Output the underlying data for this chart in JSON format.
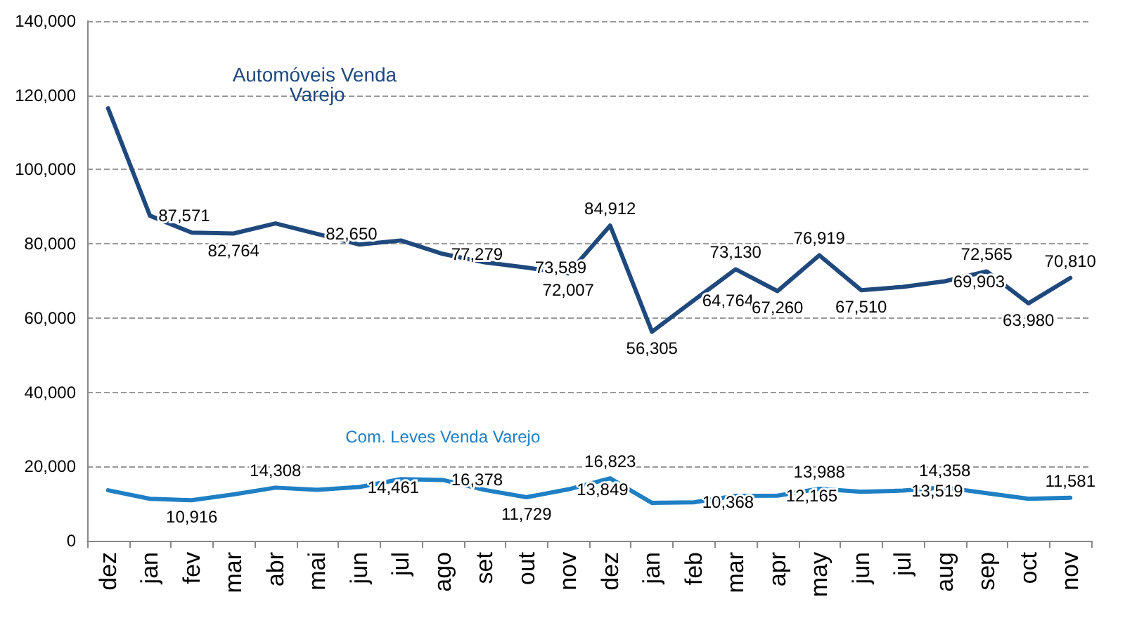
{
  "chart_data": {
    "type": "line",
    "categories": [
      "dez",
      "jan",
      "fev",
      "mar",
      "abr",
      "mai",
      "jun",
      "jul",
      "ago",
      "set",
      "out",
      "nov",
      "dez",
      "jan",
      "feb",
      "mar",
      "apr",
      "may",
      "jun",
      "jul",
      "aug",
      "sep",
      "oct",
      "nov"
    ],
    "series": [
      {
        "name": "Automóveis Venda Varejo",
        "color": "#1f497d",
        "values": [
          116500,
          87571,
          83000,
          82764,
          85500,
          82650,
          79800,
          80900,
          77279,
          75000,
          73589,
          72007,
          84912,
          56305,
          64764,
          73130,
          67260,
          76919,
          67510,
          68400,
          69903,
          72565,
          63980,
          70810
        ],
        "value_labels": [
          null,
          "87,571",
          null,
          "82,764",
          null,
          "82,650",
          null,
          null,
          "77,279",
          null,
          "73,589",
          "72,007",
          "84,912",
          "56,305",
          "64,764",
          "73,130",
          "67,260",
          "76,919",
          "67,510",
          null,
          "69,903",
          "72,565",
          "63,980",
          "70,810"
        ]
      },
      {
        "name": "Com. Leves Venda Varejo",
        "color": "#1f7fc4",
        "values": [
          13600,
          11300,
          10916,
          12500,
          14308,
          13700,
          14461,
          16600,
          16378,
          13700,
          11729,
          13849,
          16823,
          10200,
          10368,
          12100,
          12165,
          13988,
          13200,
          13519,
          14358,
          12800,
          11300,
          11581
        ],
        "value_labels": [
          null,
          null,
          "10,916",
          null,
          "14,308",
          null,
          "14,461",
          null,
          "16,378",
          null,
          "11,729",
          "13,849",
          "16,823",
          null,
          "10,368",
          null,
          "12,165",
          "13,988",
          null,
          "13,519",
          "14,358",
          null,
          null,
          "11,581"
        ]
      }
    ],
    "ylim": [
      0,
      140000
    ],
    "yticks": [
      {
        "value": 0,
        "label": "0"
      },
      {
        "value": 20000,
        "label": "20,000"
      },
      {
        "value": 40000,
        "label": "40,000"
      },
      {
        "value": 60000,
        "label": "60,000"
      },
      {
        "value": 80000,
        "label": "80,000"
      },
      {
        "value": 100000,
        "label": "100,000"
      },
      {
        "value": 120000,
        "label": "120,000"
      },
      {
        "value": 140000,
        "label": "140,000"
      }
    ],
    "grid": "y",
    "marker": "none",
    "line_style": "solid",
    "legend": false
  }
}
